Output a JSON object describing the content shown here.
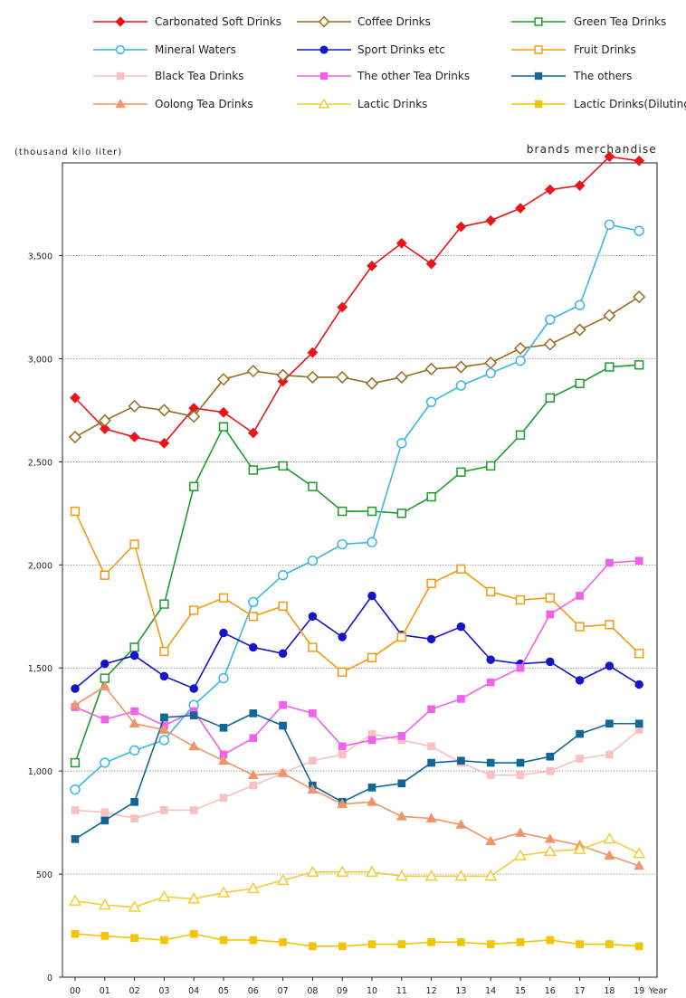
{
  "chart_data": {
    "type": "line",
    "subtitle": "brands merchandise",
    "ylabel": "(thousand kilo liter)",
    "xlabel": "Year",
    "ylim": [
      0,
      3950
    ],
    "yticks": [
      0,
      500,
      1000,
      1500,
      2000,
      2500,
      3000,
      3500
    ],
    "ytick_labels": [
      "0",
      "500",
      "1,000",
      "1,500",
      "2,000",
      "2,500",
      "3,000",
      "3,500"
    ],
    "categories": [
      "00",
      "01",
      "02",
      "03",
      "04",
      "05",
      "06",
      "07",
      "08",
      "09",
      "10",
      "11",
      "12",
      "13",
      "14",
      "15",
      "16",
      "17",
      "18",
      "19"
    ],
    "series": [
      {
        "name": "Carbonated Soft Drinks",
        "color": "#e8141a",
        "marker": "diamond",
        "filled": true,
        "values": [
          2810,
          2660,
          2620,
          2590,
          2760,
          2740,
          2640,
          2890,
          3030,
          3250,
          3450,
          3560,
          3460,
          3640,
          3670,
          3730,
          3820,
          3840,
          3980,
          3960
        ]
      },
      {
        "name": "Coffee Drinks",
        "color": "#9b6a1e",
        "marker": "diamond",
        "filled": false,
        "values": [
          2620,
          2700,
          2770,
          2750,
          2720,
          2900,
          2940,
          2920,
          2910,
          2910,
          2880,
          2910,
          2950,
          2960,
          2980,
          3050,
          3070,
          3140,
          3210,
          3300
        ]
      },
      {
        "name": "Green Tea Drinks",
        "color": "#1f9a2e",
        "marker": "square",
        "filled": false,
        "values": [
          1040,
          1450,
          1600,
          1810,
          2380,
          2670,
          2460,
          2480,
          2380,
          2260,
          2260,
          2250,
          2330,
          2450,
          2480,
          2630,
          2810,
          2880,
          2960,
          2970
        ]
      },
      {
        "name": "Mineral Waters",
        "color": "#3ab6e6",
        "marker": "circle",
        "filled": false,
        "values": [
          910,
          1040,
          1100,
          1150,
          1320,
          1450,
          1820,
          1950,
          2020,
          2100,
          2110,
          2590,
          2790,
          2870,
          2930,
          2990,
          3190,
          3260,
          3650,
          3620
        ]
      },
      {
        "name": "Sport Drinks etc",
        "color": "#1515c8",
        "marker": "circle",
        "filled": true,
        "values": [
          1400,
          1520,
          1560,
          1460,
          1400,
          1670,
          1600,
          1570,
          1750,
          1650,
          1850,
          1660,
          1640,
          1700,
          1540,
          1520,
          1530,
          1440,
          1510,
          1420
        ]
      },
      {
        "name": "Fruit Drinks",
        "color": "#f59a10",
        "marker": "square",
        "filled": false,
        "values": [
          2260,
          1950,
          2100,
          1580,
          1780,
          1840,
          1750,
          1800,
          1600,
          1480,
          1550,
          1650,
          1910,
          1980,
          1870,
          1830,
          1840,
          1700,
          1710,
          1570
        ]
      },
      {
        "name": "Black Tea Drinks",
        "color": "#f8c0c0",
        "marker": "square",
        "filled": true,
        "values": [
          810,
          800,
          770,
          810,
          810,
          870,
          930,
          990,
          1050,
          1080,
          1180,
          1150,
          1120,
          1040,
          980,
          980,
          1000,
          1060,
          1080,
          1200
        ]
      },
      {
        "name": "The other Tea Drinks",
        "color": "#f060e8",
        "marker": "square",
        "filled": true,
        "values": [
          1310,
          1250,
          1290,
          1220,
          1290,
          1080,
          1160,
          1320,
          1280,
          1120,
          1150,
          1170,
          1300,
          1350,
          1430,
          1500,
          1760,
          1850,
          2010,
          2020
        ]
      },
      {
        "name": "The others",
        "color": "#116694",
        "marker": "square",
        "filled": true,
        "values": [
          670,
          760,
          850,
          1260,
          1270,
          1210,
          1280,
          1220,
          930,
          850,
          920,
          940,
          1040,
          1050,
          1040,
          1040,
          1070,
          1180,
          1230,
          1230
        ]
      },
      {
        "name": "Oolong Tea Drinks",
        "color": "#f0946a",
        "marker": "triangle",
        "filled": true,
        "values": [
          1320,
          1410,
          1230,
          1200,
          1120,
          1050,
          980,
          990,
          910,
          840,
          850,
          780,
          770,
          740,
          660,
          700,
          670,
          640,
          590,
          540
        ]
      },
      {
        "name": "Lactic Drinks",
        "color": "#f2cc3a",
        "marker": "triangle",
        "filled": false,
        "values": [
          370,
          350,
          340,
          390,
          380,
          410,
          430,
          470,
          510,
          510,
          510,
          490,
          490,
          490,
          490,
          590,
          610,
          620,
          670,
          600
        ]
      },
      {
        "name": "Lactic Drinks(Diluting)",
        "color": "#f5c400",
        "marker": "square",
        "filled": true,
        "values": [
          210,
          200,
          190,
          180,
          210,
          180,
          180,
          170,
          150,
          150,
          160,
          160,
          170,
          170,
          160,
          170,
          180,
          160,
          160,
          150
        ]
      }
    ]
  }
}
